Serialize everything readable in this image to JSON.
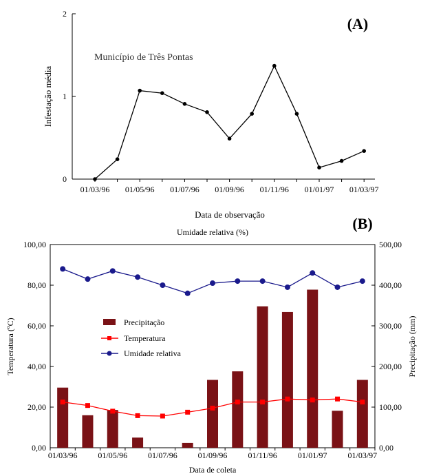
{
  "chart_data": [
    {
      "panel_label": "(A)",
      "type": "line",
      "annotation": "Município de Três Pontas",
      "xlabel": "Data de observação",
      "ylabel": "Infestação média",
      "x_tick_labels": [
        "01/03/96",
        "01/05/96",
        "01/07/96",
        "01/09/96",
        "01/11/96",
        "01/01/97",
        "01/03/97"
      ],
      "y_tick_labels": [
        "0",
        "1",
        "2"
      ],
      "ylim": [
        0,
        2
      ],
      "grid": false,
      "series": [
        {
          "x": [
            "01/03/96",
            "01/04/96",
            "01/05/96",
            "01/06/96",
            "01/07/96",
            "01/08/96",
            "01/09/96",
            "01/10/96",
            "01/11/96",
            "01/12/96",
            "01/01/97",
            "01/02/97",
            "01/03/97"
          ],
          "values": [
            0.0,
            0.24,
            1.07,
            1.04,
            0.91,
            0.81,
            0.49,
            0.79,
            1.37,
            0.79,
            0.14,
            0.22,
            0.34
          ],
          "color": "#000000"
        }
      ]
    },
    {
      "panel_label": "(B)",
      "type": "bar",
      "title": "Umidade relativa (%)",
      "xlabel": "Data de coleta",
      "ylabel": "Temperatura (ºC)",
      "ylabel_right": "Precipitação (mm)",
      "x_tick_labels": [
        "01/03/96",
        "01/05/96",
        "01/07/96",
        "01/09/96",
        "01/11/96",
        "01/01/97",
        "01/03/97"
      ],
      "y_tick_labels": [
        "0,00",
        "20,00",
        "40,00",
        "60,00",
        "80,00",
        "100,00"
      ],
      "y2_tick_labels": [
        "0,00",
        "100,00",
        "200,00",
        "300,00",
        "400,00",
        "500,00"
      ],
      "ylim": [
        0,
        100
      ],
      "ylim_right": [
        0,
        500
      ],
      "legend_position": "center-left",
      "grid": false,
      "categories": [
        "01/03/96",
        "01/04/96",
        "01/05/96",
        "01/06/96",
        "01/07/96",
        "01/08/96",
        "01/09/96",
        "01/10/96",
        "01/11/96",
        "01/12/96",
        "01/01/97",
        "01/02/97",
        "01/03/97"
      ],
      "series": [
        {
          "name": "Precipitação",
          "type": "bar",
          "axis": "right",
          "color": "#7a1216",
          "values": [
            148,
            80,
            93,
            25,
            0,
            12,
            167,
            188,
            348,
            334,
            389,
            91,
            167
          ]
        },
        {
          "name": "Temperatura",
          "type": "line",
          "axis": "left",
          "color": "#ff0000",
          "marker": "square",
          "values": [
            22.5,
            20.8,
            18.0,
            15.8,
            15.6,
            17.5,
            19.5,
            22.5,
            22.5,
            24.0,
            23.5,
            24.0,
            22.5
          ]
        },
        {
          "name": "Umidade relativa",
          "type": "line",
          "axis": "left",
          "color": "#1a1a8c",
          "marker": "circle",
          "values": [
            88.0,
            83.0,
            87.0,
            84.0,
            80.0,
            76.0,
            81.0,
            82.0,
            82.0,
            79.0,
            86.0,
            79.0,
            82.0
          ]
        }
      ]
    }
  ]
}
